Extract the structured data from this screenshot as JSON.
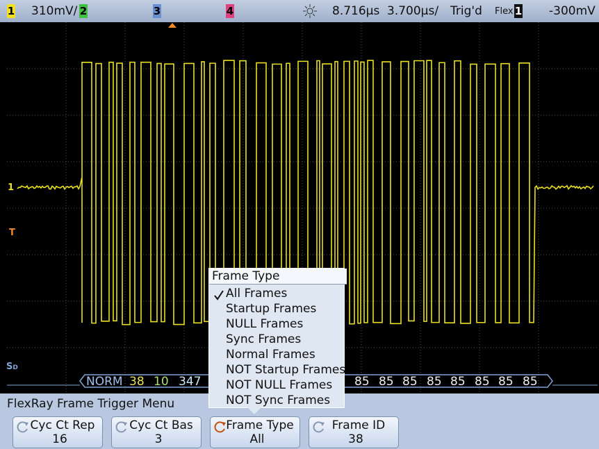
{
  "top_bar": {
    "ch1_label": "1",
    "ch1_scale": "310mV/",
    "ch2_label": "2",
    "ch3_label": "3",
    "ch4_label": "4",
    "time_delay": "8.716µs",
    "time_scale": "3.700µs/",
    "trigger_status": "Trig'd",
    "trigger_mode": "Flex",
    "trigger_source": "1",
    "trigger_level": "-300mV"
  },
  "markers": {
    "ch1": "1",
    "trigger": "T",
    "serial": {
      "main": "S",
      "sub": "D"
    }
  },
  "decode": {
    "fields": [
      "NORM",
      "38",
      "10",
      "347",
      "85",
      "85",
      "85",
      "85",
      "85",
      "85",
      "85",
      "85"
    ]
  },
  "popup": {
    "title": "Frame Type",
    "items": [
      "All Frames",
      "Startup Frames",
      "NULL Frames",
      "Sync Frames",
      "Normal Frames",
      "NOT Startup Frames",
      "NOT NULL Frames",
      "NOT Sync Frames"
    ]
  },
  "menu_title": "FlexRay Frame Trigger Menu",
  "softkeys": [
    {
      "label": "Cyc Ct Rep",
      "value": "16"
    },
    {
      "label": "Cyc Ct Bas",
      "value": "3"
    },
    {
      "label": "Frame Type",
      "value": "All"
    },
    {
      "label": "Frame ID",
      "value": "38"
    }
  ]
}
